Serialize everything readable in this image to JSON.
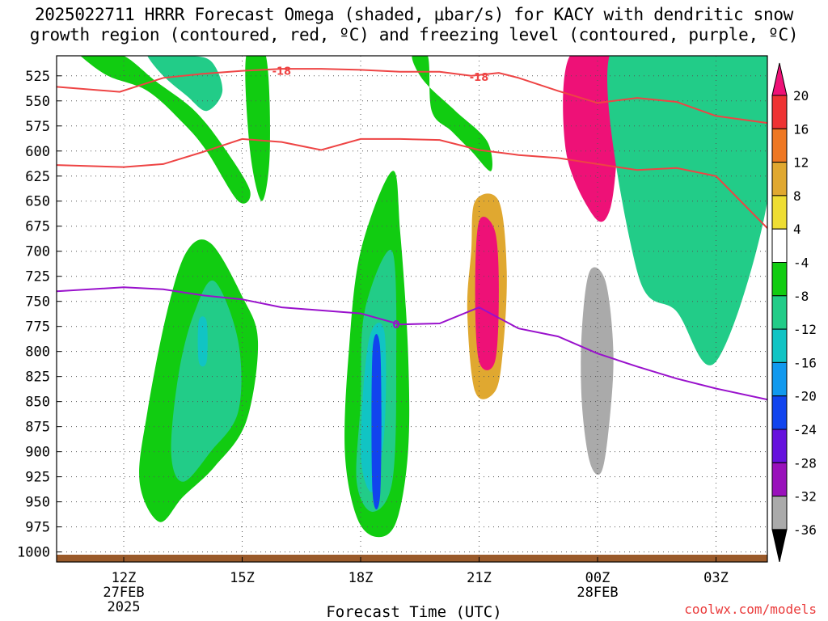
{
  "title_line1": "2025022711 HRRR Forecast Omega (shaded, μbar/s) for KACY with dendritic snow",
  "title_line2": "growth region (contoured, red, ºC) and freezing level (contoured, purple, ºC)",
  "credit": "coolwx.com/models",
  "chart_data": {
    "type": "heatmap",
    "title": "2025022711 HRRR Forecast Omega (shaded, μbar/s) for KACY with dendritic snow growth region (contoured, red, ºC) and freezing level (contoured, purple, ºC)",
    "xlabel": "Forecast Time (UTC)",
    "ylabel": "",
    "x_unit": "hours from 2025-02-27 12Z",
    "xlim": [
      -1.7,
      16.3
    ],
    "ylim": [
      1010,
      505
    ],
    "x_ticks": [
      {
        "x": 0,
        "label": "12Z",
        "sub1": "27FEB",
        "sub2": "2025"
      },
      {
        "x": 3,
        "label": "15Z",
        "sub1": "",
        "sub2": ""
      },
      {
        "x": 6,
        "label": "18Z",
        "sub1": "",
        "sub2": ""
      },
      {
        "x": 9,
        "label": "21Z",
        "sub1": "",
        "sub2": ""
      },
      {
        "x": 12,
        "label": "00Z",
        "sub1": "28FEB",
        "sub2": ""
      },
      {
        "x": 15,
        "label": "03Z",
        "sub1": "",
        "sub2": ""
      }
    ],
    "y_ticks": [
      525,
      550,
      575,
      600,
      625,
      650,
      675,
      700,
      725,
      750,
      775,
      800,
      825,
      850,
      875,
      900,
      925,
      950,
      975,
      1000
    ],
    "colorbar": {
      "labels": [
        "20",
        "16",
        "12",
        "8",
        "4",
        "-4",
        "-8",
        "-12",
        "-16",
        "-20",
        "-24",
        "-28",
        "-32",
        "-36"
      ],
      "colors": [
        "#ee1177",
        "#ee3333",
        "#ee7722",
        "#e0a830",
        "#eedd33",
        "#ffffff",
        "#11cc11",
        "#22cc88",
        "#11c4c4",
        "#1199ee",
        "#1144ee",
        "#6611dd",
        "#9911bb",
        "#aaaaaa",
        "#000000"
      ]
    },
    "series": [
      {
        "name": "-18",
        "kind": "red_contour",
        "x": [
          -1.7,
          -0.1,
          1,
          2,
          3,
          4,
          5,
          6,
          7,
          8,
          8.8,
          9.5,
          10,
          11,
          12,
          13,
          14,
          15,
          16.3
        ],
        "y": [
          536,
          541,
          527,
          523,
          520,
          518,
          518,
          519,
          521,
          521,
          525,
          522,
          527,
          540,
          552,
          547,
          551,
          565,
          572
        ]
      },
      {
        "name": "",
        "kind": "red_contour",
        "x": [
          -1.7,
          0,
          1,
          2,
          3,
          4,
          5,
          6,
          7,
          8,
          9,
          10,
          11,
          12,
          13,
          14,
          15,
          16.3
        ],
        "y": [
          614,
          616,
          613,
          601,
          588,
          591,
          599,
          588,
          588,
          589,
          599,
          604,
          607,
          613,
          619,
          617,
          625,
          677
        ]
      },
      {
        "name": "0",
        "kind": "purple_contour",
        "x": [
          -1.7,
          0,
          1,
          2,
          3,
          4,
          5,
          6,
          7,
          8,
          9,
          10,
          11,
          12,
          13,
          14,
          15,
          16.3
        ],
        "y": [
          740,
          736,
          738,
          744,
          748,
          756,
          759,
          762,
          773,
          772,
          756,
          777,
          785,
          802,
          815,
          827,
          837,
          848
        ]
      }
    ],
    "regions": [
      {
        "level": -8,
        "x": [
          -1.1,
          -0.4,
          0.6,
          1.5,
          2.1,
          2.9,
          3.2,
          2.6,
          1.8,
          0.8,
          0.0,
          -0.6,
          -1.0
        ],
        "y": [
          505,
          525,
          540,
          572,
          600,
          650,
          640,
          600,
          560,
          530,
          505,
          505,
          505
        ]
      },
      {
        "level": -12,
        "x": [
          0.6,
          1.0,
          1.6,
          2.1,
          2.5,
          2.2,
          1.5,
          0.8
        ],
        "y": [
          505,
          525,
          545,
          560,
          540,
          510,
          505,
          505
        ]
      },
      {
        "level": -8,
        "x": [
          1.6,
          2.2,
          3.0,
          3.4,
          3.1,
          2.3,
          1.5,
          0.9,
          0.4,
          0.6,
          1.1
        ],
        "y": [
          700,
          692,
          745,
          790,
          870,
          915,
          945,
          970,
          930,
          860,
          760
        ]
      },
      {
        "level": -12,
        "x": [
          1.8,
          2.3,
          2.9,
          2.9,
          2.2,
          1.5,
          1.2,
          1.4
        ],
        "y": [
          760,
          730,
          790,
          860,
          900,
          930,
          900,
          820
        ]
      },
      {
        "level": -16,
        "x": [
          1.9,
          2.1,
          2.1,
          1.9
        ],
        "y": [
          770,
          770,
          810,
          810
        ]
      },
      {
        "level": -8,
        "x": [
          6.0,
          6.8,
          7.0,
          7.2,
          7.2,
          6.9,
          6.4,
          5.9,
          5.6,
          5.7
        ],
        "y": [
          700,
          620,
          680,
          800,
          900,
          970,
          985,
          965,
          900,
          800
        ]
      },
      {
        "level": -12,
        "x": [
          6.1,
          6.8,
          6.9,
          6.8,
          6.3,
          5.9,
          6.0
        ],
        "y": [
          760,
          700,
          820,
          930,
          960,
          930,
          850
        ]
      },
      {
        "level": -16,
        "x": [
          6.2,
          6.6,
          6.6,
          6.3,
          6.0
        ],
        "y": [
          790,
          780,
          880,
          940,
          900
        ]
      },
      {
        "level": -24,
        "x": [
          6.3,
          6.5,
          6.5,
          6.3
        ],
        "y": [
          800,
          800,
          940,
          940
        ]
      },
      {
        "level": -8,
        "x": [
          3.1,
          3.6,
          3.7,
          3.5,
          3.2
        ],
        "y": [
          505,
          505,
          600,
          650,
          600
        ]
      },
      {
        "level": -8,
        "x": [
          7.3,
          7.7,
          7.8,
          8.3,
          8.8,
          9.3,
          9.2,
          8.4,
          7.6
        ],
        "y": [
          505,
          505,
          560,
          580,
          600,
          620,
          590,
          560,
          530
        ]
      },
      {
        "level": 8,
        "x": [
          8.9,
          9.5,
          9.7,
          9.6,
          9.4,
          8.9,
          8.7,
          8.8
        ],
        "y": [
          650,
          650,
          720,
          800,
          840,
          840,
          760,
          700
        ]
      },
      {
        "level": 20,
        "x": [
          9.0,
          9.4,
          9.5,
          9.4,
          9.0,
          8.9
        ],
        "y": [
          670,
          680,
          740,
          810,
          810,
          740
        ]
      },
      {
        "level": 20,
        "x": [
          11.3,
          12.6,
          12.5,
          12.3,
          11.9,
          11.2
        ],
        "y": [
          505,
          505,
          600,
          660,
          665,
          600
        ]
      },
      {
        "level": -12,
        "x": [
          12.3,
          14.5,
          15.8,
          16.3,
          16.3,
          15.0,
          14.0,
          13.0
        ],
        "y": [
          505,
          505,
          505,
          505,
          650,
          810,
          760,
          720
        ]
      },
      {
        "level": -36,
        "x": [
          11.8,
          12.2,
          12.4,
          12.3,
          12.1,
          11.8,
          11.6,
          11.6
        ],
        "y": [
          720,
          730,
          800,
          870,
          920,
          910,
          850,
          780
        ]
      }
    ]
  }
}
